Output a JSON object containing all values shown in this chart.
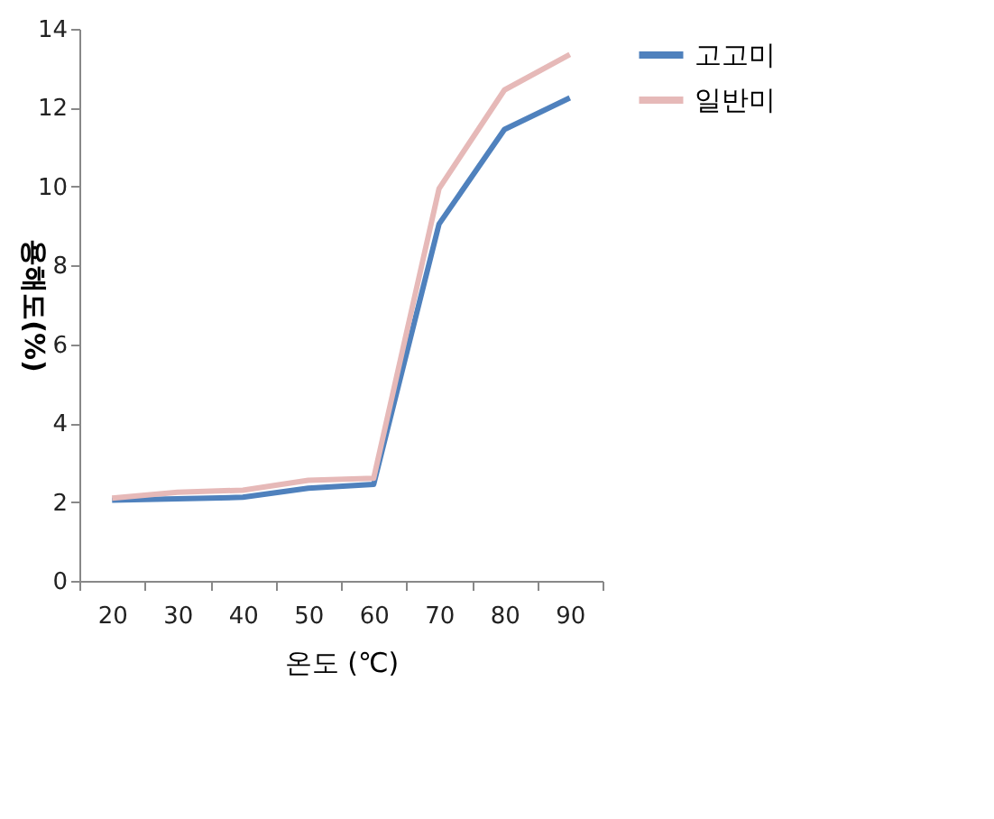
{
  "chart_data": {
    "type": "line",
    "xlabel": "온도 (℃)",
    "ylabel": "용해도(%)",
    "categories": [
      "20",
      "30",
      "40",
      "50",
      "60",
      "70",
      "80",
      "90"
    ],
    "series": [
      {
        "name": "고고미",
        "color": "#4f81bd",
        "values": [
          2.05,
          2.08,
          2.12,
          2.35,
          2.45,
          9.05,
          11.45,
          12.25
        ]
      },
      {
        "name": "일반미",
        "color": "#e6b9b8",
        "values": [
          2.1,
          2.25,
          2.3,
          2.55,
          2.6,
          9.95,
          12.45,
          13.35
        ]
      }
    ],
    "ylim": [
      0,
      14
    ],
    "yticks": [
      0,
      2,
      4,
      6,
      8,
      10,
      12,
      14
    ],
    "grid": false,
    "legend": "right",
    "marker": "none",
    "line_style": "solid"
  }
}
